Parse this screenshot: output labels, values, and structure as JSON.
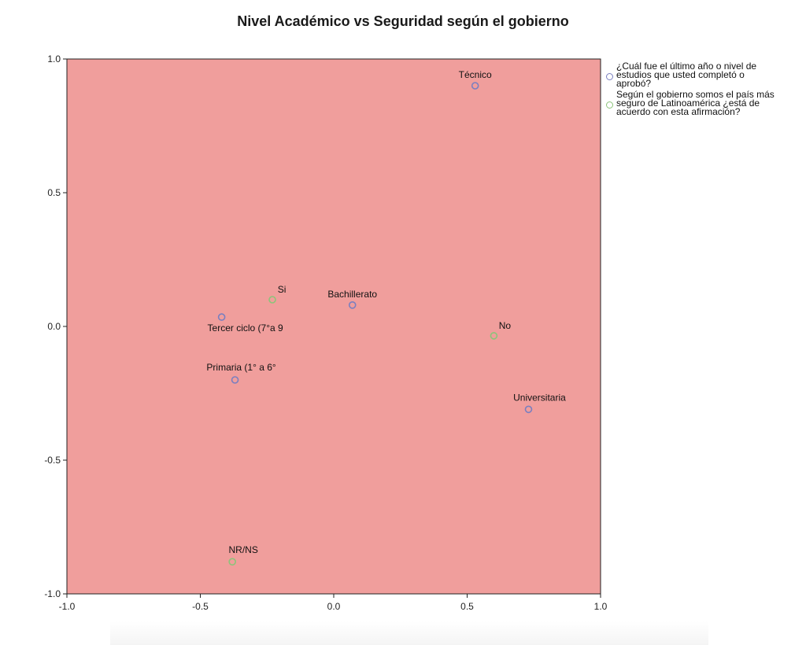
{
  "chart_data": {
    "type": "scatter",
    "title": "Nivel Académico vs Seguridad según el gobierno",
    "xlim": [
      -1.0,
      1.0
    ],
    "ylim": [
      -1.0,
      1.0
    ],
    "x_ticks": [
      "-1.0",
      "-0.5",
      "0.0",
      "0.5",
      "1.0"
    ],
    "y_ticks": [
      "1.0",
      "0.5",
      "0.0",
      "-0.5",
      "-1.0"
    ],
    "grid": false,
    "background_color": "#f09e9c",
    "legend_position": "right",
    "series": [
      {
        "name": "¿Cuál fue el último año o nivel de estudios que usted completó o aprobó?",
        "color": "#7a7fc0",
        "points": [
          {
            "label": "Técnico",
            "x": 0.53,
            "y": 0.9
          },
          {
            "label": "Bachillerato",
            "x": 0.07,
            "y": 0.08
          },
          {
            "label": "Tercer ciclo (7°a 9",
            "x": -0.42,
            "y": 0.035
          },
          {
            "label": "Primaria (1° a 6°",
            "x": -0.37,
            "y": -0.2
          },
          {
            "label": "Universitaria",
            "x": 0.73,
            "y": -0.31
          }
        ]
      },
      {
        "name": "Según el gobierno somos el país más seguro de Latinoamérica ¿está de acuerdo con esta afirmación?",
        "color": "#8cc47a",
        "points": [
          {
            "label": "Si",
            "x": -0.23,
            "y": 0.1
          },
          {
            "label": "No",
            "x": 0.6,
            "y": -0.035
          },
          {
            "label": "NR/NS",
            "x": -0.38,
            "y": -0.88
          }
        ]
      }
    ],
    "legend_lines": [
      [
        "¿Cuál fue el último año o nivel de",
        "estudios que usted completó o",
        "aprobó?"
      ],
      [
        "Según el gobierno somos el país más",
        "seguro de Latinoamérica ¿está de",
        "acuerdo con esta afirmación?"
      ]
    ]
  }
}
